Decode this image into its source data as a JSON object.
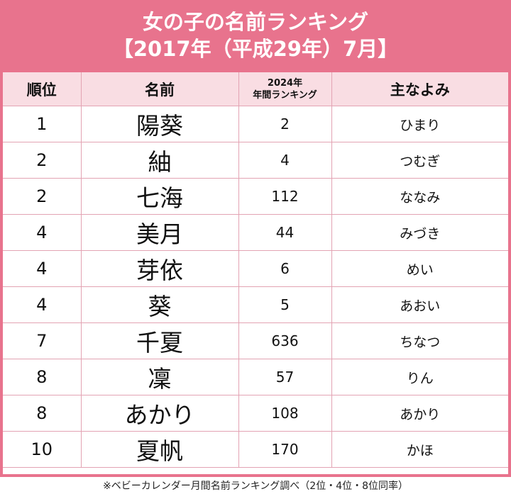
{
  "title": {
    "line1": "女の子の名前ランキング",
    "line2": "【2017年（平成29年）7月】"
  },
  "header": {
    "rank": "順位",
    "name": "名前",
    "rank2024_line1": "2024年",
    "rank2024_line2": "年間ランキング",
    "reading": "主なよみ"
  },
  "rows": [
    {
      "rank": "1",
      "name": "陽葵",
      "rank2024": "2",
      "reading": "ひまり"
    },
    {
      "rank": "2",
      "name": "紬",
      "rank2024": "4",
      "reading": "つむぎ"
    },
    {
      "rank": "2",
      "name": "七海",
      "rank2024": "112",
      "reading": "ななみ"
    },
    {
      "rank": "4",
      "name": "美月",
      "rank2024": "44",
      "reading": "みづき"
    },
    {
      "rank": "4",
      "name": "芽依",
      "rank2024": "6",
      "reading": "めい"
    },
    {
      "rank": "4",
      "name": "葵",
      "rank2024": "5",
      "reading": "あおい"
    },
    {
      "rank": "7",
      "name": "千夏",
      "rank2024": "636",
      "reading": "ちなつ"
    },
    {
      "rank": "8",
      "name": "凜",
      "rank2024": "57",
      "reading": "りん"
    },
    {
      "rank": "8",
      "name": "あかり",
      "rank2024": "108",
      "reading": "あかり"
    },
    {
      "rank": "10",
      "name": "夏帆",
      "rank2024": "170",
      "reading": "かほ"
    }
  ],
  "footnote": "※ベビーカレンダー月間名前ランキング調べ（2位・4位・8位同率）",
  "colors": {
    "accent": "#e8738d",
    "header_bg": "#f9dde3",
    "grid": "#e3a3b3"
  }
}
